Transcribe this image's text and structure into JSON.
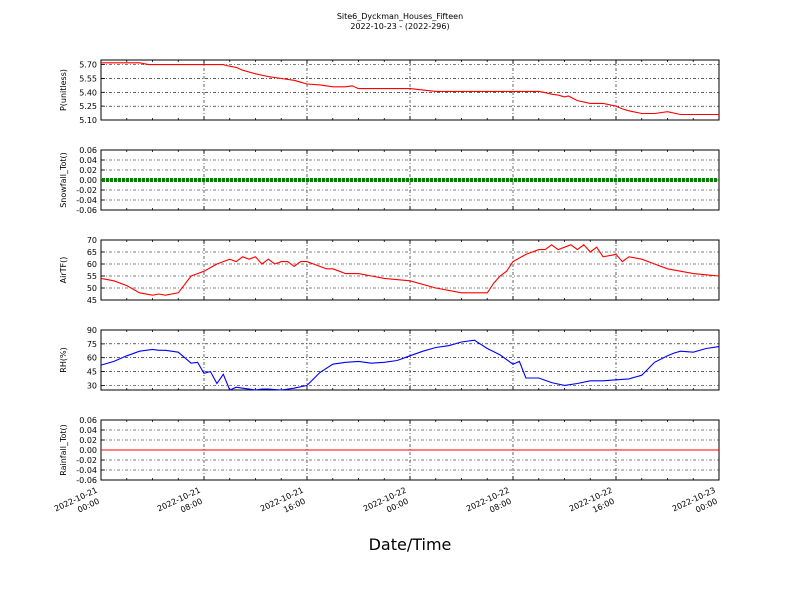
{
  "title": "Site6_Dyckman_Houses_Fifteen",
  "subtitle": "2022-10-23 - (2022-296)",
  "xlabel": "Date/Time",
  "x_ticks": [
    {
      "line1": "2022-10-21",
      "line2": "00:00"
    },
    {
      "line1": "2022-10-21",
      "line2": "08:00"
    },
    {
      "line1": "2022-10-21",
      "line2": "16:00"
    },
    {
      "line1": "2022-10-22",
      "line2": "00:00"
    },
    {
      "line1": "2022-10-22",
      "line2": "08:00"
    },
    {
      "line1": "2022-10-22",
      "line2": "16:00"
    },
    {
      "line1": "2022-10-23",
      "line2": "00:00"
    }
  ],
  "chart_data": [
    {
      "type": "line",
      "ylabel": "P(unitless)",
      "color": "#ff0000",
      "ylim": [
        5.1,
        5.75
      ],
      "yticks": [
        "5.70",
        "5.55",
        "5.40",
        "5.25",
        "5.10"
      ],
      "x_hours": [
        0,
        3,
        3.7,
        6,
        9.5,
        9.7,
        10.5,
        11,
        12,
        13,
        14,
        15,
        15.5,
        16,
        17,
        18,
        19,
        19.5,
        20,
        24,
        26,
        31,
        34,
        34.4,
        35,
        35.5,
        36,
        36.3,
        37,
        38,
        39,
        40,
        40.5,
        41,
        42,
        43,
        44,
        45,
        46,
        47,
        48
      ],
      "y": [
        5.72,
        5.72,
        5.7,
        5.7,
        5.7,
        5.69,
        5.67,
        5.64,
        5.6,
        5.57,
        5.55,
        5.53,
        5.51,
        5.49,
        5.48,
        5.46,
        5.46,
        5.47,
        5.44,
        5.44,
        5.41,
        5.41,
        5.41,
        5.4,
        5.38,
        5.37,
        5.35,
        5.36,
        5.31,
        5.28,
        5.28,
        5.25,
        5.22,
        5.2,
        5.17,
        5.17,
        5.19,
        5.16,
        5.16,
        5.16,
        5.16
      ]
    },
    {
      "type": "scatter",
      "ylabel": "Snowfall_Tot()",
      "color": "#008000",
      "ylim": [
        -0.06,
        0.06
      ],
      "yticks": [
        "0.06",
        "0.04",
        "0.02",
        "0.00",
        "-0.02",
        "-0.04",
        "-0.06"
      ],
      "x_hours": [
        0,
        48
      ],
      "y": [
        0.0,
        0.0
      ],
      "constant_series": true
    },
    {
      "type": "line",
      "ylabel": "AirTF()",
      "color": "#ff0000",
      "ylim": [
        45,
        70
      ],
      "yticks": [
        "70",
        "65",
        "60",
        "55",
        "50",
        "45"
      ],
      "x_hours": [
        0,
        1,
        2,
        3,
        4,
        4.5,
        5,
        6,
        7,
        7.5,
        8,
        9,
        9.5,
        10,
        10.5,
        11,
        11.5,
        12,
        12.5,
        13,
        13.5,
        14,
        14.5,
        15,
        15.5,
        16,
        16.5,
        17,
        17.5,
        18,
        18.5,
        19,
        20,
        21,
        22,
        24,
        26,
        28,
        30,
        30.5,
        31,
        31.5,
        32,
        33,
        33.5,
        34,
        34.5,
        35,
        35.5,
        36,
        36.5,
        37,
        37.5,
        38,
        38.5,
        39,
        40,
        40.5,
        41,
        42,
        43,
        44,
        45,
        46,
        47,
        48
      ],
      "y": [
        54,
        53,
        51,
        48,
        47,
        47.5,
        47,
        48,
        55,
        56,
        57,
        60,
        61,
        62,
        61,
        63,
        62,
        63,
        60,
        62,
        60,
        61,
        61,
        59,
        61,
        61,
        60,
        59,
        58,
        58,
        57,
        56,
        56,
        55,
        54,
        53,
        50,
        48,
        48,
        52,
        55,
        57,
        61,
        64,
        65,
        66,
        66,
        68,
        66,
        67,
        68,
        66,
        68,
        65,
        67,
        63,
        64,
        61,
        63,
        62,
        60,
        58,
        57,
        56,
        55.5,
        55
      ]
    },
    {
      "type": "line",
      "ylabel": "RH(%)",
      "color": "#0000ff",
      "ylim": [
        25,
        90
      ],
      "yticks": [
        "90",
        "75",
        "60",
        "45",
        "30"
      ],
      "x_hours": [
        0,
        1,
        2,
        3,
        4,
        4.5,
        5,
        6,
        7,
        7.5,
        8,
        8.5,
        9,
        9.5,
        10,
        10.5,
        11,
        11.5,
        12,
        12.5,
        13,
        14,
        15,
        16,
        17,
        18,
        19,
        20,
        21,
        22,
        23,
        24,
        25,
        26,
        27,
        28,
        29,
        30,
        31,
        32,
        32.5,
        33,
        34,
        35,
        36,
        37,
        38,
        39,
        40,
        41,
        42,
        43,
        44,
        44.5,
        45,
        46,
        47,
        48
      ],
      "y": [
        52,
        56,
        62,
        67,
        69,
        68,
        68,
        66,
        54,
        55,
        43,
        45,
        32,
        42,
        25,
        28,
        27,
        26,
        25,
        26,
        26,
        25,
        27,
        30,
        44,
        53,
        55,
        56,
        54,
        55,
        57,
        62,
        67,
        71,
        73,
        77,
        79,
        70,
        63,
        53,
        56,
        38,
        38,
        33,
        30,
        32,
        35,
        35,
        36,
        37,
        41,
        55,
        62,
        65,
        67,
        66,
        70,
        72
      ]
    },
    {
      "type": "line",
      "ylabel": "Rainfall_Tot()",
      "color": "#ff0000",
      "ylim": [
        -0.06,
        0.06
      ],
      "yticks": [
        "0.06",
        "0.04",
        "0.02",
        "0.00",
        "-0.02",
        "-0.04",
        "-0.06"
      ],
      "x_hours": [
        0,
        48
      ],
      "y": [
        0.0,
        0.0
      ]
    }
  ]
}
